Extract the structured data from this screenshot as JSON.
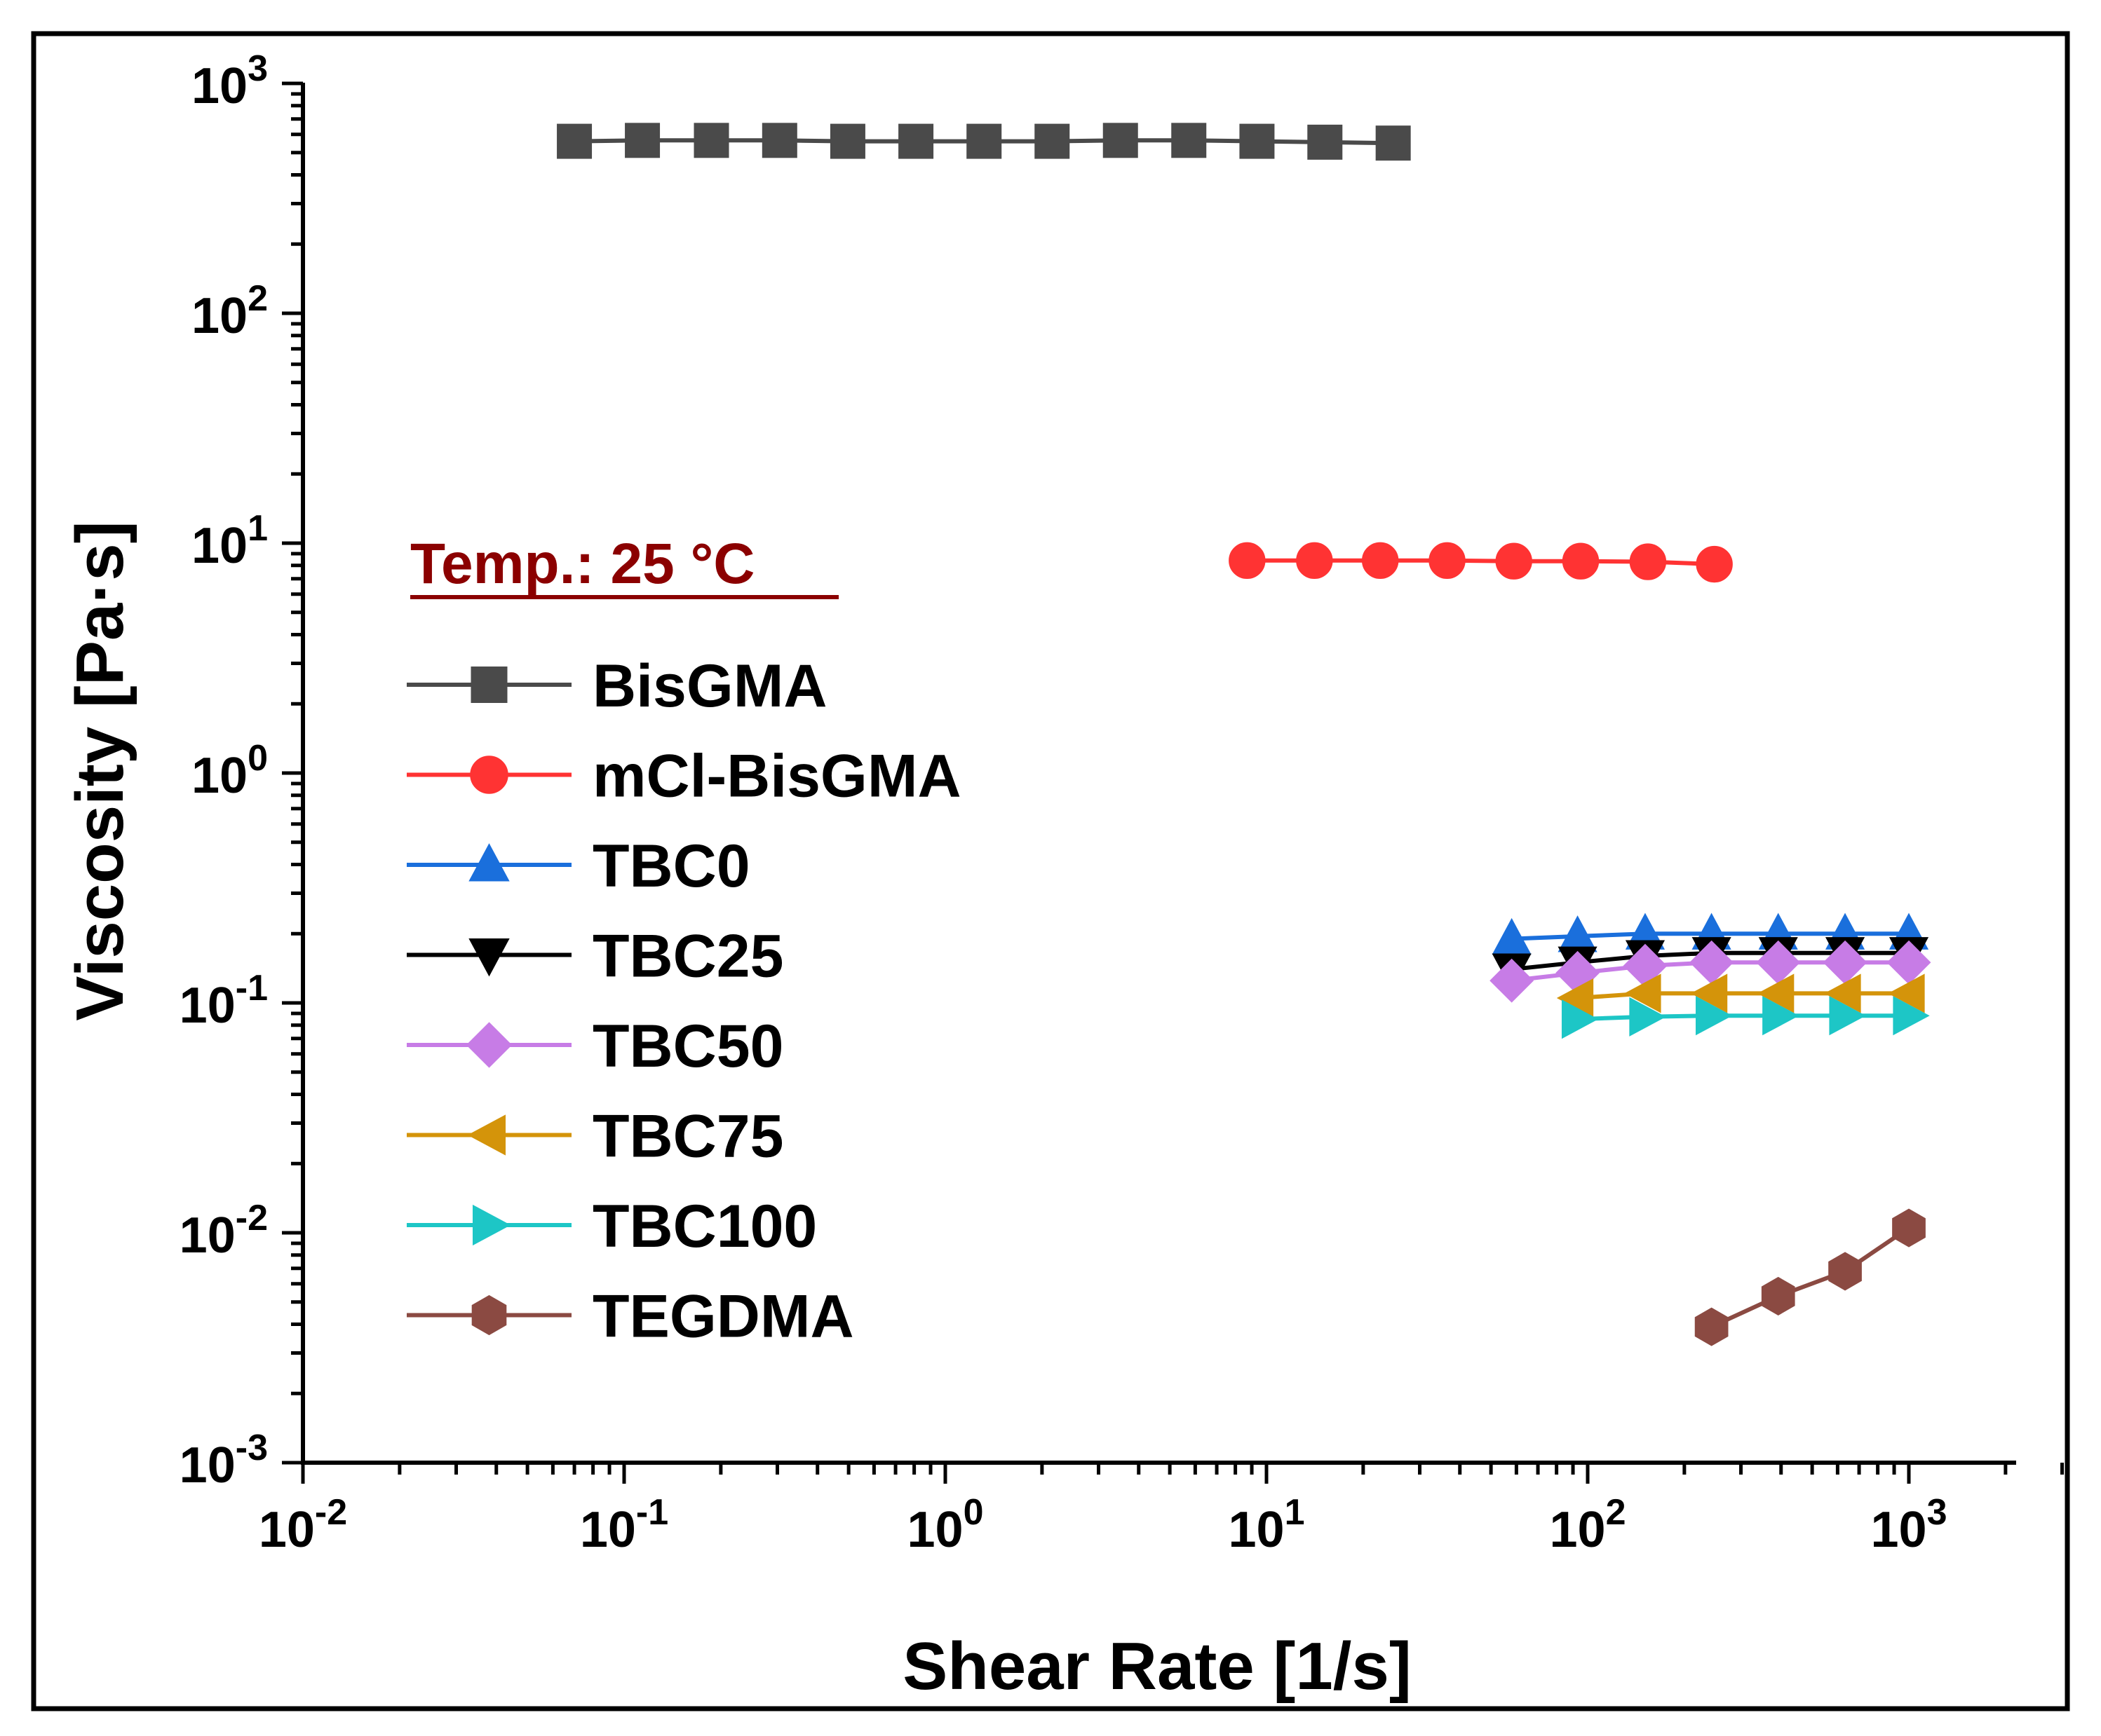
{
  "chart_data": {
    "type": "line",
    "xscale": "log",
    "yscale": "log",
    "xlabel": "Shear Rate [1/s]",
    "ylabel": "Viscosity [Pa·s]",
    "xlim": [
      0.01,
      3000
    ],
    "ylim": [
      0.001,
      1000
    ],
    "x_tick_labels": [
      {
        "value": 0.01,
        "base": "10",
        "exp": "-2"
      },
      {
        "value": 0.1,
        "base": "10",
        "exp": "-1"
      },
      {
        "value": 1,
        "base": "10",
        "exp": "0"
      },
      {
        "value": 10,
        "base": "10",
        "exp": "1"
      },
      {
        "value": 100,
        "base": "10",
        "exp": "2"
      },
      {
        "value": 1000,
        "base": "10",
        "exp": "3"
      }
    ],
    "y_tick_labels": [
      {
        "value": 0.001,
        "base": "10",
        "exp": "-3"
      },
      {
        "value": 0.01,
        "base": "10",
        "exp": "-2"
      },
      {
        "value": 0.1,
        "base": "10",
        "exp": "-1"
      },
      {
        "value": 1,
        "base": "10",
        "exp": "0"
      },
      {
        "value": 10,
        "base": "10",
        "exp": "1"
      },
      {
        "value": 100,
        "base": "10",
        "exp": "2"
      },
      {
        "value": 1000,
        "base": "10",
        "exp": "3"
      }
    ],
    "annotation": {
      "text": "Temp.: 25 °C",
      "color": "#8b0000"
    },
    "legend_position": "left",
    "series": [
      {
        "name": "BisGMA",
        "color": "#4a4a4a",
        "marker": "square",
        "x": [
          0.07,
          0.114,
          0.187,
          0.305,
          0.497,
          0.81,
          1.32,
          2.15,
          3.51,
          5.73,
          9.34,
          15.2,
          24.8
        ],
        "y": [
          560,
          565,
          565,
          565,
          560,
          560,
          560,
          560,
          565,
          565,
          560,
          555,
          550
        ]
      },
      {
        "name": "mCl-BisGMA",
        "color": "#ff3333",
        "marker": "circle",
        "x": [
          8.7,
          14.1,
          22.6,
          36.5,
          58.9,
          95.1,
          154,
          248
        ],
        "y": [
          8.4,
          8.4,
          8.4,
          8.4,
          8.35,
          8.35,
          8.3,
          8.1
        ]
      },
      {
        "name": "TBC0",
        "color": "#1a6fdc",
        "marker": "triangle-up",
        "x": [
          58,
          93,
          151,
          243,
          392,
          633,
          1000
        ],
        "y": [
          0.19,
          0.195,
          0.2,
          0.2,
          0.2,
          0.2,
          0.2
        ]
      },
      {
        "name": "TBC25",
        "color": "#000000",
        "marker": "triangle-down",
        "x": [
          58,
          93,
          151,
          243,
          392,
          633,
          1000
        ],
        "y": [
          0.14,
          0.15,
          0.16,
          0.165,
          0.165,
          0.165,
          0.165
        ]
      },
      {
        "name": "TBC50",
        "color": "#c77ce6",
        "marker": "diamond",
        "x": [
          58,
          93,
          151,
          243,
          392,
          633,
          1000
        ],
        "y": [
          0.125,
          0.135,
          0.145,
          0.15,
          0.15,
          0.15,
          0.15
        ]
      },
      {
        "name": "TBC75",
        "color": "#d4940a",
        "marker": "triangle-left",
        "x": [
          93,
          151,
          243,
          392,
          633,
          1000
        ],
        "y": [
          0.105,
          0.11,
          0.11,
          0.11,
          0.11,
          0.11
        ]
      },
      {
        "name": "TBC100",
        "color": "#1dc6c6",
        "marker": "triangle-right",
        "x": [
          93,
          151,
          243,
          392,
          633,
          1000
        ],
        "y": [
          0.085,
          0.087,
          0.088,
          0.088,
          0.088,
          0.088
        ]
      },
      {
        "name": "TEGDMA",
        "color": "#8b4a42",
        "marker": "hexagon",
        "x": [
          243,
          392,
          633,
          1000
        ],
        "y": [
          0.0039,
          0.0053,
          0.0068,
          0.0105
        ]
      }
    ]
  }
}
